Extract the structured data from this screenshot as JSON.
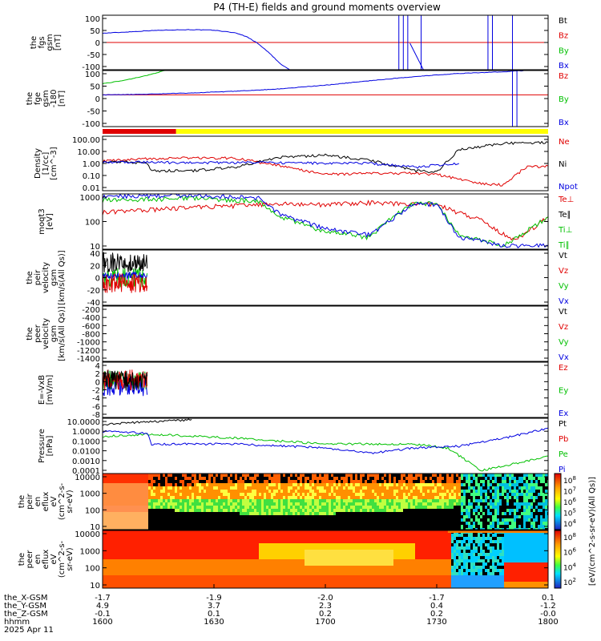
{
  "title": "P4 (TH-E) fields and ground moments overview",
  "colors": {
    "black": "#000000",
    "red": "#e00000",
    "green": "#00c000",
    "blue": "#0000e0",
    "yellow": "#ffff00"
  },
  "chart_data": [
    {
      "type": "line",
      "panel": "fgs",
      "ylabel": [
        "the",
        "fgs",
        "gsm",
        "[nT]"
      ],
      "yticks": [
        "100",
        "50",
        "0",
        "-50",
        "-100"
      ],
      "ylim": [
        -100,
        100
      ],
      "legend": [
        "Bt",
        "Bz",
        "By",
        "Bx"
      ],
      "legend_colors": [
        "black",
        "red",
        "green",
        "blue"
      ],
      "series": [
        {
          "name": "Bx",
          "color": "blue",
          "x": [
            1600,
            1610,
            1620,
            1630,
            1640,
            1650,
            1660,
            1665,
            1670,
            1675,
            1680,
            1684
          ],
          "y": [
            34,
            38,
            43,
            46,
            47,
            45,
            35,
            20,
            -5,
            -40,
            -80,
            -100
          ]
        }
      ],
      "hlines": [
        {
          "y": 0,
          "color": "red"
        }
      ]
    },
    {
      "type": "line",
      "panel": "fge",
      "ylabel": [
        "the",
        "fge",
        "gsm",
        "-180",
        "[nT]"
      ],
      "yticks": [
        "100",
        "50",
        "0",
        "-50",
        "-100"
      ],
      "ylim": [
        -130,
        100
      ],
      "legend": [
        "Bz",
        "By",
        "Bx"
      ],
      "legend_colors": [
        "red",
        "green",
        "blue"
      ],
      "series": [
        {
          "name": "By",
          "color": "green",
          "x": [
            1600,
            1610,
            1620,
            1628
          ],
          "y": [
            46,
            60,
            80,
            100
          ]
        },
        {
          "name": "Bx",
          "color": "blue",
          "x": [
            1600,
            1620,
            1640,
            1660,
            1680,
            1700,
            1720,
            1740,
            1760,
            1780,
            1790
          ],
          "y": [
            0,
            3,
            8,
            15,
            25,
            40,
            58,
            75,
            88,
            95,
            100
          ]
        }
      ],
      "hlines": [
        {
          "y": 0,
          "color": "red"
        }
      ]
    },
    {
      "type": "line",
      "panel": "density",
      "ylabel": [
        "Density",
        "[1/cc]",
        "[cm^-3]"
      ],
      "yticks": [
        "100.00",
        "10.00",
        "1.00",
        "0.10",
        "0.01"
      ],
      "ylim": [
        0.005,
        200
      ],
      "yscale": "log",
      "legend": [
        "Ne",
        "Ni",
        "Npot"
      ],
      "legend_colors": [
        "red",
        "black",
        "blue"
      ],
      "series": [
        {
          "name": "Ne",
          "color": "red",
          "x": [
            1600,
            1620,
            1640,
            1660,
            1680,
            1700,
            1720,
            1740,
            1750,
            1770,
            1780,
            1790,
            1800
          ],
          "y": [
            1.6,
            2.5,
            3.0,
            2.8,
            0.6,
            0.12,
            0.15,
            0.15,
            0.12,
            0.02,
            0.015,
            0.5,
            0.6
          ]
        },
        {
          "name": "Ni",
          "color": "black",
          "x": [
            1600,
            1620,
            1622,
            1640,
            1660,
            1680,
            1700,
            1720,
            1740,
            1750,
            1760,
            1780,
            1800
          ],
          "y": [
            1.4,
            1.2,
            0.25,
            0.25,
            0.5,
            3.5,
            5,
            2,
            0.25,
            0.2,
            15,
            50,
            60
          ]
        },
        {
          "name": "Npot",
          "color": "blue",
          "x": [
            1600,
            1650,
            1700,
            1720,
            1740,
            1760
          ],
          "y": [
            1.3,
            1.2,
            1.1,
            1.0,
            0.5,
            1.0
          ]
        }
      ]
    },
    {
      "type": "line",
      "panel": "temperature",
      "ylabel": [
        "moqt3",
        "[eV]"
      ],
      "yticks": [
        "1000",
        "100",
        "10"
      ],
      "ylim": [
        8,
        4000
      ],
      "yscale": "log",
      "legend": [
        "Te⊥",
        "Te∥",
        "Ti⊥",
        "Ti∥"
      ],
      "legend_colors": [
        "red",
        "black",
        "green",
        "green"
      ],
      "series": [
        {
          "name": "Te⊥",
          "color": "red",
          "x": [
            1600,
            1640,
            1680,
            1700,
            1720,
            1750,
            1770,
            1785,
            1800
          ],
          "y": [
            500,
            900,
            1300,
            1200,
            1500,
            1200,
            200,
            20,
            300
          ]
        },
        {
          "name": "Ti∥",
          "color": "green",
          "x": [
            1600,
            1640,
            1670,
            1680,
            1700,
            1720,
            1730,
            1740,
            1750,
            1760,
            1780,
            1800
          ],
          "y": [
            2000,
            2500,
            1800,
            300,
            60,
            30,
            300,
            1500,
            1300,
            40,
            12,
            300
          ]
        },
        {
          "name": "Bulk",
          "color": "blue",
          "x": [
            1600,
            1640,
            1670,
            1680,
            1700,
            1720,
            1740,
            1750,
            1760,
            1780,
            1800
          ],
          "y": [
            3000,
            3500,
            2500,
            400,
            80,
            40,
            1500,
            1200,
            30,
            12,
            12
          ]
        }
      ]
    },
    {
      "type": "line",
      "panel": "peir_velocity",
      "ylabel": [
        "the",
        "peir",
        "velocity",
        "gsm",
        "[km/s(All Qs)]"
      ],
      "yticks": [
        "40",
        "20",
        "0",
        "-20",
        "-40"
      ],
      "ylim": [
        -50,
        50
      ],
      "legend": [
        "Vt",
        "Vz",
        "Vy",
        "Vx"
      ],
      "legend_colors": [
        "black",
        "red",
        "green",
        "blue"
      ],
      "x_end": 1620
    },
    {
      "type": "line",
      "panel": "peer_velocity",
      "ylabel": [
        "the",
        "peer",
        "velocity",
        "gsm",
        "[km/s(All Qs)]"
      ],
      "yticks": [
        "-200",
        "-400",
        "-600",
        "-800",
        "-1000",
        "-1200",
        "-1400"
      ],
      "ylim": [
        -1500,
        0
      ],
      "legend": [
        "Vt",
        "Vz",
        "Vy",
        "Vx"
      ],
      "legend_colors": [
        "black",
        "red",
        "green",
        "blue"
      ]
    },
    {
      "type": "line",
      "panel": "efield",
      "ylabel": [
        "E=-VxB",
        "[mV/m]"
      ],
      "yticks": [
        "4",
        "2",
        "0",
        "-2",
        "-4",
        "-6",
        "-8"
      ],
      "ylim": [
        -9,
        5
      ],
      "legend": [
        "Ez",
        "Ey",
        "Ex"
      ],
      "legend_colors": [
        "red",
        "green",
        "blue"
      ],
      "x_end": 1620
    },
    {
      "type": "line",
      "panel": "pressure",
      "ylabel": [
        "Pressure",
        "[nPa]"
      ],
      "yticks": [
        "10.0000",
        "1.0000",
        "0.1000",
        "0.0100",
        "0.0010",
        "0.0001"
      ],
      "ylim": [
        5e-05,
        20
      ],
      "yscale": "log",
      "legend": [
        "Pt",
        "Pb",
        "Pe",
        "Pi"
      ],
      "legend_colors": [
        "black",
        "red",
        "green",
        "blue"
      ],
      "series": [
        {
          "name": "Pt",
          "color": "black",
          "x": [
            1600,
            1640
          ],
          "y": [
            5,
            15
          ]
        },
        {
          "name": "Pe",
          "color": "green",
          "x": [
            1600,
            1620,
            1660,
            1700,
            1740,
            1755,
            1770,
            1780,
            1800
          ],
          "y": [
            0.3,
            0.5,
            0.2,
            0.05,
            0.05,
            0.02,
            0.0001,
            0.0003,
            0.003
          ]
        },
        {
          "name": "Pi",
          "color": "blue",
          "x": [
            1600,
            1620,
            1622,
            1660,
            1700,
            1720,
            1740,
            1760,
            1780,
            1800
          ],
          "y": [
            1.0,
            0.6,
            0.05,
            0.05,
            0.02,
            0.006,
            0.02,
            0.03,
            0.2,
            2
          ]
        }
      ]
    },
    {
      "type": "heatmap",
      "panel": "peir_spectrogram",
      "ylabel": [
        "the",
        "peir",
        "en",
        "eflux",
        "eV",
        "(cm^2-s-",
        "sr-eV)"
      ],
      "yticks": [
        "10000",
        "1000",
        "100",
        "10"
      ],
      "colorbar_ticks": [
        "10^8",
        "10^7",
        "10^6",
        "10^5",
        "10^4"
      ],
      "colorbar_label": "[eV/(cm^2-s-sr-eV)(All Qs)]"
    },
    {
      "type": "heatmap",
      "panel": "peer_spectrogram",
      "ylabel": [
        "the",
        "peer",
        "en",
        "eflux",
        "eV",
        "(cm^2-s-",
        "sr-eV)"
      ],
      "yticks": [
        "10000",
        "1000",
        "100",
        "10"
      ],
      "colorbar_ticks": [
        "10^8",
        "10^6",
        "10^4",
        "10^2"
      ],
      "colorbar_label": "[eV/(cm^2-s-sr-eV)(All Qs)]"
    }
  ],
  "xaxis": {
    "rows": [
      {
        "label": "the_X-GSM",
        "ticks": [
          "-1.7",
          "-1.9",
          "-2.0",
          "-1.7",
          "0.1"
        ]
      },
      {
        "label": "the_Y-GSM",
        "ticks": [
          "4.9",
          "3.7",
          "2.3",
          "0.4",
          "-1.2"
        ]
      },
      {
        "label": "the_Z-GSM",
        "ticks": [
          "-0.1",
          "0.1",
          "0.2",
          "0.2",
          "-0.0"
        ]
      },
      {
        "label": "hhmm",
        "ticks": [
          "1600",
          "1630",
          "1700",
          "1730",
          "1800"
        ]
      }
    ],
    "date": "2025 Apr 11"
  }
}
